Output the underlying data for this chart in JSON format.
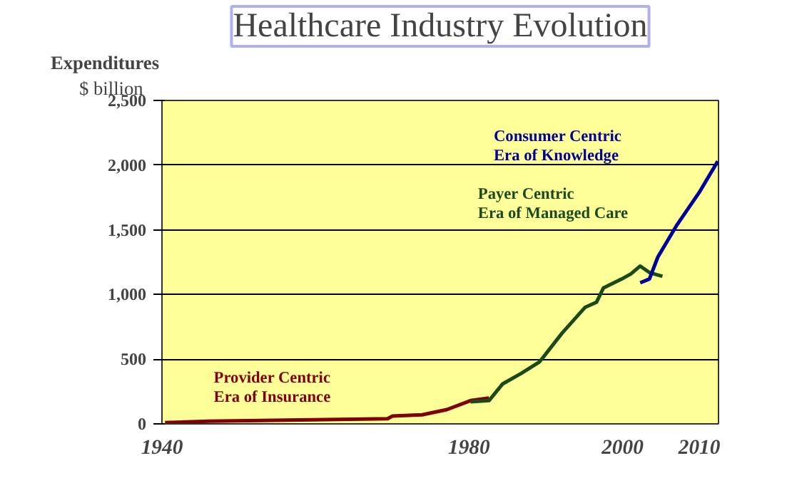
{
  "chart_data": {
    "type": "line",
    "title": "Healthcare Industry Evolution",
    "ylabel": "Expenditures",
    "annotations": [
      "$ billion"
    ],
    "xlim": [
      1940,
      2012.5
    ],
    "xticks": [
      1940,
      1980,
      2000,
      2010
    ],
    "ylim": [
      0,
      2500
    ],
    "yticks": [
      0,
      {
        "value": 500,
        "label": "500"
      },
      {
        "value": 1000,
        "label": "1,000"
      },
      {
        "value": 1500,
        "label": "1,500"
      },
      {
        "value": 2000,
        "label": "2,000"
      },
      {
        "value": 2500,
        "label": "2,500"
      }
    ],
    "grid": "y",
    "series": [
      {
        "name": "Provider Centric\nEra of Insurance",
        "color": "#800000",
        "x": [
          1940.4,
          1946.1,
          1957.9,
          1969.4,
          1970.0,
          1973.9,
          1977.1,
          1980.2,
          1982.6
        ],
        "values": [
          10,
          20,
          30,
          40,
          60,
          70,
          110,
          180,
          200
        ]
      },
      {
        "name": "Payer Centric\nEra of Managed Care",
        "color": "#1a4a1a",
        "x": [
          1980.2,
          1982.6,
          1984.4,
          1986.8,
          1989.2,
          1992.1,
          1995.1,
          1996.6,
          1997.5,
          1999.9,
          2001.1,
          2002.3,
          2003.5,
          2005.2
        ],
        "values": [
          170,
          180,
          310,
          390,
          480,
          700,
          900,
          940,
          1050,
          1120,
          1160,
          1220,
          1170,
          1140
        ]
      },
      {
        "name": "Consumer Centric\nEra of Knowledge",
        "color": "#000099",
        "x": [
          2002.3,
          2003.5,
          2004.6,
          2007.0,
          2010.0,
          2012.4
        ],
        "values": [
          1090,
          1120,
          1290,
          1530,
          1790,
          2030
        ]
      }
    ]
  }
}
